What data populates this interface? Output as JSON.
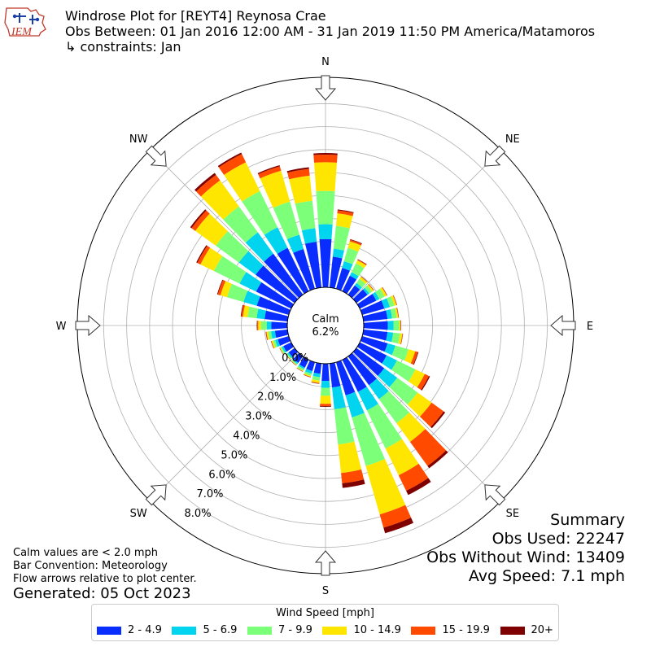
{
  "logo": {
    "text": "IEM"
  },
  "header": {
    "title": "Windrose Plot for [REYT4] Reynosa Crae",
    "period": "Obs Between: 01 Jan 2016 12:00 AM - 31 Jan 2019 11:50 PM America/Matamoros",
    "constraints": "↳ constraints: Jan"
  },
  "notes": {
    "line1": "Calm values are < 2.0 mph",
    "line2": "Bar Convention: Meteorology",
    "line3": "Flow arrows relative to plot center.",
    "generated": "Generated: 05 Oct 2023"
  },
  "summary": {
    "title": "Summary",
    "obs_used": "Obs Used: 22247",
    "obs_without_wind": "Obs Without Wind: 13409",
    "avg_speed": "Avg Speed: 7.1 mph"
  },
  "legend": {
    "title": "Wind Speed [mph]",
    "items": [
      {
        "label": "2 - 4.9",
        "color": "#0a2dff"
      },
      {
        "label": "5 - 6.9",
        "color": "#00d4ee"
      },
      {
        "label": "7 - 9.9",
        "color": "#7cff79"
      },
      {
        "label": "10 - 14.9",
        "color": "#ffe600"
      },
      {
        "label": "15 - 19.9",
        "color": "#ff4a00"
      },
      {
        "label": "20+",
        "color": "#7f0000"
      }
    ]
  },
  "chart_data": {
    "type": "windrose",
    "calm_label": "Calm",
    "calm_value": "6.2%",
    "radial_axis": {
      "ticks": [
        0,
        1,
        2,
        3,
        4,
        5,
        6,
        7,
        8
      ],
      "tick_labels": [
        "0.0%",
        "1.0%",
        "2.0%",
        "3.0%",
        "4.0%",
        "5.0%",
        "6.0%",
        "7.0%",
        "8.0%"
      ],
      "range": [
        0,
        9.15
      ]
    },
    "compass_labels": [
      "N",
      "NE",
      "E",
      "SE",
      "S",
      "SW",
      "W",
      "NW"
    ],
    "bin_width_deg": 10,
    "speed_bins": [
      "2 - 4.9",
      "5 - 6.9",
      "7 - 9.9",
      "10 - 14.9",
      "15 - 19.9",
      "20+"
    ],
    "colors": [
      "#0a2dff",
      "#00d4ee",
      "#7cff79",
      "#ffe600",
      "#ff4a00",
      "#7f0000"
    ],
    "directions": [
      0,
      10,
      20,
      30,
      40,
      50,
      60,
      70,
      80,
      90,
      100,
      110,
      120,
      130,
      140,
      150,
      160,
      170,
      180,
      190,
      200,
      210,
      220,
      230,
      240,
      250,
      260,
      270,
      280,
      290,
      300,
      310,
      320,
      330,
      340,
      350
    ],
    "cumulative_percent": [
      [
        2.1,
        2.75,
        4.2,
        5.45,
        5.78,
        5.85
      ],
      [
        1.35,
        1.7,
        2.7,
        3.25,
        3.38,
        3.42
      ],
      [
        0.95,
        1.25,
        1.85,
        2.15,
        2.22,
        2.25
      ],
      [
        0.75,
        0.92,
        1.35,
        1.5,
        1.53,
        1.55
      ],
      [
        0.5,
        0.63,
        0.85,
        0.95,
        0.97,
        0.98
      ],
      [
        0.6,
        0.7,
        0.85,
        0.92,
        0.94,
        0.95
      ],
      [
        0.8,
        0.95,
        1.2,
        1.3,
        1.32,
        1.33
      ],
      [
        1.0,
        1.25,
        1.45,
        1.55,
        1.57,
        1.58
      ],
      [
        1.05,
        1.25,
        1.45,
        1.52,
        1.54,
        1.55
      ],
      [
        1.05,
        1.3,
        1.55,
        1.6,
        1.62,
        1.63
      ],
      [
        1.05,
        1.3,
        1.6,
        1.7,
        1.72,
        1.73
      ],
      [
        1.15,
        1.5,
        2.1,
        2.4,
        2.52,
        2.55
      ],
      [
        1.3,
        1.8,
        2.7,
        3.15,
        3.35,
        3.4
      ],
      [
        1.5,
        2.2,
        3.3,
        4.05,
        4.7,
        4.78
      ],
      [
        1.55,
        2.3,
        3.6,
        4.6,
        5.9,
        6.02
      ],
      [
        1.55,
        2.45,
        4.3,
        5.6,
        6.35,
        6.55
      ],
      [
        1.5,
        2.5,
        4.7,
        6.9,
        7.5,
        7.75
      ],
      [
        1.05,
        2.0,
        3.55,
        4.8,
        5.25,
        5.45
      ],
      [
        0.75,
        1.05,
        1.4,
        1.75,
        1.85,
        1.88
      ],
      [
        0.45,
        0.6,
        0.75,
        0.85,
        0.88,
        0.89
      ],
      [
        0.4,
        0.52,
        0.62,
        0.66,
        0.68,
        0.69
      ],
      [
        0.38,
        0.45,
        0.53,
        0.56,
        0.57,
        0.58
      ],
      [
        0.35,
        0.41,
        0.46,
        0.48,
        0.49,
        0.5
      ],
      [
        0.32,
        0.39,
        0.44,
        0.46,
        0.47,
        0.48
      ],
      [
        0.38,
        0.46,
        0.52,
        0.55,
        0.56,
        0.57
      ],
      [
        0.5,
        0.62,
        0.72,
        0.78,
        0.8,
        0.81
      ],
      [
        0.55,
        0.72,
        0.85,
        0.92,
        0.95,
        0.96
      ],
      [
        0.7,
        0.9,
        1.15,
        1.27,
        1.31,
        1.33
      ],
      [
        1.0,
        1.35,
        1.75,
        1.95,
        2.02,
        2.05
      ],
      [
        1.45,
        2.05,
        2.8,
        3.1,
        3.22,
        3.25
      ],
      [
        1.7,
        2.5,
        3.75,
        4.4,
        4.55,
        4.6
      ],
      [
        2.1,
        3.0,
        4.25,
        5.35,
        5.55,
        5.62
      ],
      [
        2.2,
        3.35,
        4.75,
        6.15,
        6.45,
        6.55
      ],
      [
        2.1,
        3.1,
        4.85,
        6.25,
        6.65,
        6.72
      ],
      [
        1.8,
        2.45,
        3.95,
        5.35,
        5.55,
        5.6
      ],
      [
        2.0,
        2.6,
        3.8,
        4.9,
        5.2,
        5.27
      ]
    ]
  }
}
